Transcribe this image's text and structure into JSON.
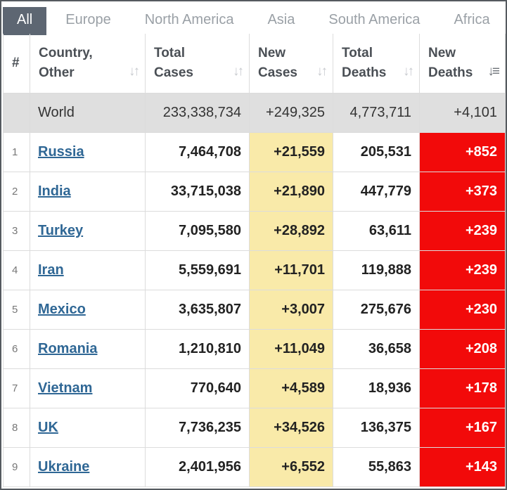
{
  "tabs": [
    "All",
    "Europe",
    "North America",
    "Asia",
    "South America",
    "Africa"
  ],
  "headers": {
    "index": "#",
    "country": [
      "Country,",
      "Other"
    ],
    "total_cases": [
      "Total",
      "Cases"
    ],
    "new_cases": [
      "New",
      "Cases"
    ],
    "total_deaths": [
      "Total",
      "Deaths"
    ],
    "new_deaths": [
      "New",
      "Deaths"
    ]
  },
  "world": {
    "name": "World",
    "total_cases": "233,338,734",
    "new_cases": "+249,325",
    "total_deaths": "4,773,711",
    "new_deaths": "+4,101"
  },
  "rows": [
    {
      "idx": "1",
      "country": "Russia",
      "total_cases": "7,464,708",
      "new_cases": "+21,559",
      "total_deaths": "205,531",
      "new_deaths": "+852"
    },
    {
      "idx": "2",
      "country": "India",
      "total_cases": "33,715,038",
      "new_cases": "+21,890",
      "total_deaths": "447,779",
      "new_deaths": "+373"
    },
    {
      "idx": "3",
      "country": "Turkey",
      "total_cases": "7,095,580",
      "new_cases": "+28,892",
      "total_deaths": "63,611",
      "new_deaths": "+239"
    },
    {
      "idx": "4",
      "country": "Iran",
      "total_cases": "5,559,691",
      "new_cases": "+11,701",
      "total_deaths": "119,888",
      "new_deaths": "+239"
    },
    {
      "idx": "5",
      "country": "Mexico",
      "total_cases": "3,635,807",
      "new_cases": "+3,007",
      "total_deaths": "275,676",
      "new_deaths": "+230"
    },
    {
      "idx": "6",
      "country": "Romania",
      "total_cases": "1,210,810",
      "new_cases": "+11,049",
      "total_deaths": "36,658",
      "new_deaths": "+208"
    },
    {
      "idx": "7",
      "country": "Vietnam",
      "total_cases": "770,640",
      "new_cases": "+4,589",
      "total_deaths": "18,936",
      "new_deaths": "+178"
    },
    {
      "idx": "8",
      "country": "UK",
      "total_cases": "7,736,235",
      "new_cases": "+34,526",
      "total_deaths": "136,375",
      "new_deaths": "+167"
    },
    {
      "idx": "9",
      "country": "Ukraine",
      "total_cases": "2,401,956",
      "new_cases": "+6,552",
      "total_deaths": "55,863",
      "new_deaths": "+143"
    }
  ],
  "colors": {
    "active_tab": "#5d6672",
    "new_cases_bg": "#f9eaa9",
    "new_deaths_bg": "#f20a0a",
    "link": "#2f6795"
  },
  "icons": {
    "sort": "sort-arrows-icon",
    "sort_active": "sort-desc-icon"
  }
}
